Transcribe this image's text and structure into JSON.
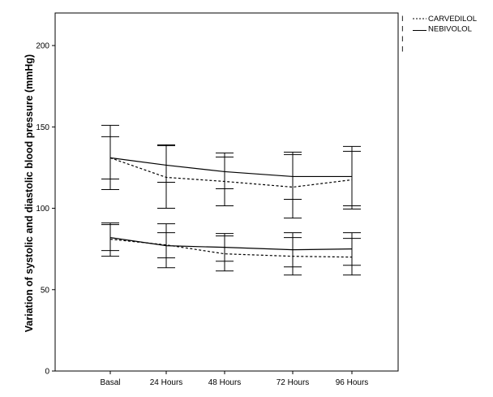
{
  "chart_data": {
    "type": "line",
    "title": "",
    "xlabel": "",
    "ylabel": "Variation of systolic  and diastolic blood pressure (mmHg)",
    "categories": [
      "Basal",
      "24 Hours",
      "48 Hours",
      "72 Hours",
      "96 Hours"
    ],
    "ylim": [
      0,
      220
    ],
    "yticks": [
      0,
      50,
      100,
      150,
      200
    ],
    "grid": false,
    "legend_position": "outside-top-right",
    "series": [
      {
        "name": "CARVEDILOL",
        "measure": "systolic",
        "style": "dotted",
        "values": [
          131,
          119,
          116.5,
          113,
          117.5
        ],
        "error_low": [
          111.5,
          100,
          101.5,
          94,
          99.5
        ],
        "error_high": [
          151,
          138.5,
          131.5,
          133,
          135
        ]
      },
      {
        "name": "NEBIVOLOL",
        "measure": "systolic",
        "style": "solid",
        "values": [
          131,
          126.5,
          122.5,
          119.5,
          119.5
        ],
        "error_low": [
          118,
          116,
          112,
          105.5,
          101.5
        ],
        "error_high": [
          144,
          139,
          134,
          134.5,
          138
        ]
      },
      {
        "name": "CARVEDILOL",
        "measure": "diastolic",
        "style": "dotted",
        "values": [
          81,
          77.5,
          72,
          70.5,
          70
        ],
        "error_low": [
          70.5,
          63.5,
          61.5,
          59,
          59
        ],
        "error_high": [
          91,
          90.5,
          84.5,
          85,
          85
        ]
      },
      {
        "name": "NEBIVOLOL",
        "measure": "diastolic",
        "style": "solid",
        "values": [
          82,
          77,
          76,
          74.5,
          75
        ],
        "error_low": [
          74,
          69.5,
          67.5,
          64,
          65
        ],
        "error_high": [
          90,
          85,
          83,
          82,
          81.5
        ]
      }
    ],
    "legend": [
      {
        "label": "CARVEDILOL",
        "style": "dotted"
      },
      {
        "label": "NEBIVOLOL",
        "style": "solid"
      }
    ],
    "legend_error_marker": "I"
  }
}
